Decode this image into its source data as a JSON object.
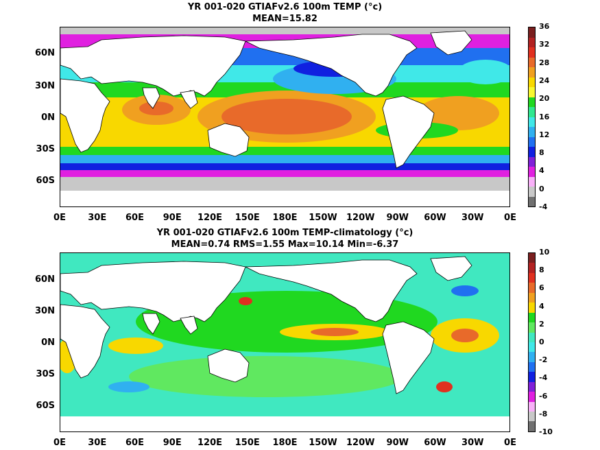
{
  "panel1": {
    "title": "YR 001-020 GTIAFv2.6 100m TEMP (°c)",
    "subtitle": "MEAN=15.82",
    "colorbar_labels": [
      "36",
      "32",
      "28",
      "24",
      "20",
      "16",
      "12",
      "8",
      "4",
      "0",
      "-4"
    ],
    "colorbar_colors": [
      "#7a1f1f",
      "#b22222",
      "#e03020",
      "#e86a2a",
      "#f0a020",
      "#f8d800",
      "#f8f830",
      "#20d820",
      "#30e890",
      "#40e8e8",
      "#30b0f0",
      "#2070f0",
      "#1020e0",
      "#8020d8",
      "#e020e0",
      "#f8b0f8",
      "#c8c8c8",
      "#707070"
    ]
  },
  "panel2": {
    "title": "YR 001-020 GTIAFv2.6 100m TEMP-climatology (°c)",
    "subtitle": "MEAN=0.74   RMS=1.55   Max=10.14   Min=-6.37",
    "colorbar_labels": [
      "10",
      "8",
      "6",
      "4",
      "2",
      "0",
      "-2",
      "-4",
      "-6",
      "-8",
      "-10"
    ],
    "colorbar_colors": [
      "#7a1f1f",
      "#b22222",
      "#e03020",
      "#e86a2a",
      "#f0a020",
      "#f8d800",
      "#20d820",
      "#60e860",
      "#40e8c0",
      "#40e8e8",
      "#30b0f0",
      "#2070f0",
      "#1020e0",
      "#8020d8",
      "#e020e0",
      "#f8b0f8",
      "#c8c8c8",
      "#707070"
    ]
  },
  "axes": {
    "lat_labels": [
      "60N",
      "30N",
      "0N",
      "30S",
      "60S"
    ],
    "lon_labels": [
      "0E",
      "30E",
      "60E",
      "90E",
      "120E",
      "150E",
      "180E",
      "150W",
      "120W",
      "90W",
      "60W",
      "30W",
      "0E"
    ]
  }
}
